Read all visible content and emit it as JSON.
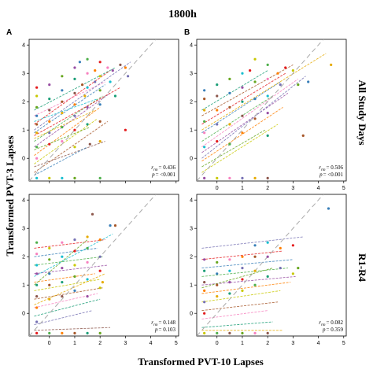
{
  "figure": {
    "title": "1800h",
    "xlabel": "Transformed PVT-10 Lapses",
    "ylabel": "Transformed PVT-3 Lapses",
    "row_labels": [
      "All Study Days",
      "R1-R4"
    ],
    "panel_letters": [
      "A",
      "B"
    ]
  },
  "colors": {
    "points": [
      "#e41a1c",
      "#377eb8",
      "#4daf4a",
      "#984ea3",
      "#ff7f00",
      "#c8c800",
      "#a65628",
      "#f781bf",
      "#1b9e77",
      "#7570b3",
      "#66a61e",
      "#e6ab02",
      "#17becf",
      "#8c564b"
    ],
    "identity_line": "#aaaaaa"
  },
  "chart_data": [
    {
      "type": "scatter",
      "panel": "A",
      "xlim": [
        -0.8,
        5.1
      ],
      "ylim": [
        -0.8,
        4.2
      ],
      "xticks": [
        0,
        1,
        2,
        3,
        4,
        5
      ],
      "yticks": [
        0,
        1,
        2,
        3,
        4
      ],
      "x_tick_labels_shown": false,
      "stat_r": "r",
      "stat_sub": "rm",
      "stat_r_value": "= 0.436",
      "stat_p": "p",
      "stat_p_value": "= <0.001",
      "identity_line": true,
      "points": [
        [
          -0.5,
          2.5
        ],
        [
          -0.5,
          2.2
        ],
        [
          -0.5,
          1.8
        ],
        [
          -0.5,
          1.5
        ],
        [
          -0.5,
          1.2
        ],
        [
          -0.5,
          0.9
        ],
        [
          -0.5,
          0.4
        ],
        [
          -0.5,
          0.0
        ],
        [
          -0.5,
          -0.7
        ],
        [
          0,
          2.6
        ],
        [
          0,
          2.1
        ],
        [
          0,
          1.7
        ],
        [
          0,
          1.3
        ],
        [
          0,
          0.9
        ],
        [
          0,
          0.5
        ],
        [
          0,
          -0.7
        ],
        [
          0.5,
          2.9
        ],
        [
          0.5,
          2.4
        ],
        [
          0.5,
          2.0
        ],
        [
          0.5,
          1.6
        ],
        [
          0.5,
          1.1
        ],
        [
          0.5,
          0.6
        ],
        [
          0.5,
          -0.7
        ],
        [
          1,
          3.2
        ],
        [
          1,
          2.8
        ],
        [
          1,
          2.3
        ],
        [
          1,
          1.9
        ],
        [
          1,
          1.5
        ],
        [
          1,
          1.0
        ],
        [
          1,
          0.4
        ],
        [
          1,
          -0.7
        ],
        [
          1.2,
          3.4
        ],
        [
          1.3,
          2.6
        ],
        [
          1.4,
          2.2
        ],
        [
          1.5,
          3.5
        ],
        [
          1.5,
          3.0
        ],
        [
          1.5,
          2.5
        ],
        [
          1.5,
          1.8
        ],
        [
          1.5,
          1.2
        ],
        [
          1.6,
          0.5
        ],
        [
          1.8,
          3.1
        ],
        [
          1.8,
          2.7
        ],
        [
          2,
          3.4
        ],
        [
          2,
          2.9
        ],
        [
          2,
          2.4
        ],
        [
          2,
          1.9
        ],
        [
          2,
          1.3
        ],
        [
          2,
          0.6
        ],
        [
          2,
          -0.7
        ],
        [
          2.3,
          3.2
        ],
        [
          2.4,
          2.7
        ],
        [
          2.5,
          3.1
        ],
        [
          2.6,
          2.2
        ],
        [
          2.8,
          3.3
        ],
        [
          3,
          3.2
        ],
        [
          3.1,
          2.9
        ],
        [
          3,
          1.0
        ]
      ],
      "fit_lines": [
        [
          -0.6,
          1.2,
          2.4,
          3.1
        ],
        [
          -0.6,
          0.9,
          2.2,
          2.6
        ],
        [
          -0.6,
          0.6,
          2.1,
          2.2
        ],
        [
          -0.6,
          0.4,
          2.4,
          2.3
        ],
        [
          -0.6,
          0.1,
          2.0,
          1.8
        ],
        [
          -0.6,
          -0.2,
          1.9,
          1.4
        ],
        [
          -0.6,
          -0.5,
          2.3,
          1.3
        ],
        [
          -0.6,
          1.5,
          2.2,
          2.7
        ],
        [
          -0.6,
          1.7,
          2.6,
          3.2
        ],
        [
          -0.6,
          1.0,
          3.2,
          3.4
        ],
        [
          -0.6,
          0.3,
          1.6,
          1.1
        ],
        [
          -0.6,
          0.7,
          1.8,
          1.7
        ],
        [
          -0.6,
          1.3,
          1.9,
          2.1
        ],
        [
          -0.6,
          -0.3,
          2.2,
          0.6
        ],
        [
          -0.6,
          0.8,
          2.8,
          2.5
        ],
        [
          -0.6,
          -0.6,
          1.5,
          0.4
        ]
      ]
    },
    {
      "type": "scatter",
      "panel": "B",
      "xlim": [
        -0.8,
        5.1
      ],
      "ylim": [
        -0.8,
        4.2
      ],
      "xticks": [
        0,
        1,
        2,
        3,
        4,
        5
      ],
      "yticks": [
        0,
        1,
        2,
        3,
        4
      ],
      "x_tick_labels_shown": true,
      "stat_r": "r",
      "stat_sub": "rm",
      "stat_r_value": "= 0.506",
      "stat_p": "p",
      "stat_p_value": "= <0.001",
      "identity_line": true,
      "points": [
        [
          -0.5,
          2.4
        ],
        [
          -0.5,
          2.1
        ],
        [
          -0.5,
          1.7
        ],
        [
          -0.5,
          1.3
        ],
        [
          -0.5,
          0.9
        ],
        [
          -0.5,
          0.4
        ],
        [
          -0.5,
          -0.7
        ],
        [
          0,
          2.6
        ],
        [
          0,
          2.2
        ],
        [
          0,
          1.7
        ],
        [
          0,
          1.2
        ],
        [
          0,
          0.6
        ],
        [
          0,
          -0.7
        ],
        [
          0.5,
          2.8
        ],
        [
          0.5,
          2.3
        ],
        [
          0.5,
          1.8
        ],
        [
          0.5,
          1.2
        ],
        [
          0.5,
          0.5
        ],
        [
          0.5,
          -0.7
        ],
        [
          1,
          3.0
        ],
        [
          1,
          2.5
        ],
        [
          1,
          2.0
        ],
        [
          1,
          1.5
        ],
        [
          1,
          0.9
        ],
        [
          1,
          -0.7
        ],
        [
          1.3,
          3.1
        ],
        [
          1.5,
          3.5
        ],
        [
          1.5,
          2.7
        ],
        [
          1.5,
          2.1
        ],
        [
          1.5,
          1.4
        ],
        [
          1.5,
          -0.7
        ],
        [
          2,
          3.3
        ],
        [
          2,
          2.8
        ],
        [
          2,
          2.2
        ],
        [
          2,
          1.6
        ],
        [
          2,
          0.8
        ],
        [
          2,
          -0.7
        ],
        [
          2.4,
          3.0
        ],
        [
          2.5,
          2.6
        ],
        [
          2.7,
          3.2
        ],
        [
          3,
          3.1
        ],
        [
          3.2,
          2.6
        ],
        [
          3.6,
          2.7
        ],
        [
          3.4,
          0.8
        ],
        [
          4.5,
          3.3
        ]
      ],
      "fit_lines": [
        [
          -0.6,
          1.2,
          2.7,
          3.0
        ],
        [
          -0.6,
          0.9,
          2.5,
          2.7
        ],
        [
          -0.6,
          0.6,
          2.2,
          2.2
        ],
        [
          -0.6,
          0.2,
          2.8,
          2.3
        ],
        [
          -0.6,
          -0.1,
          2.6,
          1.8
        ],
        [
          -0.6,
          -0.5,
          2.4,
          1.2
        ],
        [
          -0.6,
          1.5,
          3.0,
          3.3
        ],
        [
          -0.6,
          0.4,
          3.2,
          2.8
        ],
        [
          -0.6,
          1.7,
          2.0,
          3.1
        ],
        [
          -0.6,
          0.0,
          3.5,
          2.9
        ],
        [
          -0.6,
          -0.3,
          1.9,
          1.0
        ],
        [
          -0.6,
          1.0,
          4.3,
          3.7
        ]
      ]
    },
    {
      "type": "scatter",
      "panel": "C",
      "xlim": [
        -0.8,
        5.1
      ],
      "ylim": [
        -0.8,
        4.2
      ],
      "xticks": [
        0,
        1,
        2,
        3,
        4,
        5
      ],
      "yticks": [
        0,
        1,
        2,
        3,
        4
      ],
      "x_tick_labels_shown": true,
      "stat_r": "r",
      "stat_sub": "rm",
      "stat_r_value": "= 0.148",
      "stat_p": "p",
      "stat_p_value": "= 0.103",
      "identity_line": true,
      "points": [
        [
          -0.5,
          2.5
        ],
        [
          -0.5,
          2.1
        ],
        [
          -0.5,
          1.7
        ],
        [
          -0.5,
          1.4
        ],
        [
          -0.5,
          1.0
        ],
        [
          -0.5,
          0.6
        ],
        [
          -0.5,
          0.2
        ],
        [
          -0.5,
          -0.3
        ],
        [
          -0.5,
          -0.7
        ],
        [
          0,
          2.3
        ],
        [
          0,
          1.9
        ],
        [
          0,
          1.4
        ],
        [
          0,
          1.0
        ],
        [
          0,
          0.5
        ],
        [
          0,
          -0.7
        ],
        [
          0.5,
          2.5
        ],
        [
          0.5,
          2.0
        ],
        [
          0.5,
          1.6
        ],
        [
          0.5,
          1.1
        ],
        [
          0.5,
          0.6
        ],
        [
          0.5,
          -0.7
        ],
        [
          1,
          2.6
        ],
        [
          1,
          2.2
        ],
        [
          1,
          1.7
        ],
        [
          1,
          1.3
        ],
        [
          1,
          0.8
        ],
        [
          1,
          -0.7
        ],
        [
          1.5,
          2.7
        ],
        [
          1.5,
          2.3
        ],
        [
          1.5,
          1.8
        ],
        [
          1.5,
          1.2
        ],
        [
          1.5,
          0.6
        ],
        [
          1.5,
          -0.7
        ],
        [
          1.7,
          3.5
        ],
        [
          2,
          2.6
        ],
        [
          2,
          2.0
        ],
        [
          2,
          1.5
        ],
        [
          2,
          0.9
        ],
        [
          2,
          -0.7
        ],
        [
          2.4,
          3.1
        ],
        [
          2.6,
          3.1
        ],
        [
          2.1,
          1.1
        ]
      ],
      "fit_lines": [
        [
          -0.6,
          2.3,
          2.2,
          2.6
        ],
        [
          -0.6,
          2.0,
          1.9,
          2.3
        ],
        [
          -0.6,
          1.7,
          2.1,
          2.0
        ],
        [
          -0.6,
          1.4,
          2.3,
          1.7
        ],
        [
          -0.6,
          1.1,
          1.8,
          1.4
        ],
        [
          -0.6,
          0.8,
          2.0,
          1.2
        ],
        [
          -0.6,
          0.5,
          2.1,
          0.9
        ],
        [
          -0.6,
          0.2,
          1.9,
          0.7
        ],
        [
          -0.6,
          -0.1,
          2.0,
          0.5
        ],
        [
          -0.6,
          -0.4,
          1.7,
          0.1
        ],
        [
          -0.6,
          1.0,
          1.5,
          2.6
        ],
        [
          -0.6,
          0.3,
          2.2,
          1.4
        ],
        [
          -0.6,
          1.3,
          2.5,
          2.8
        ],
        [
          -0.6,
          -0.6,
          2.4,
          -0.5
        ]
      ]
    },
    {
      "type": "scatter",
      "panel": "D",
      "xlim": [
        -0.8,
        5.1
      ],
      "ylim": [
        -0.8,
        4.2
      ],
      "xticks": [
        0,
        1,
        2,
        3,
        4,
        5
      ],
      "yticks": [
        0,
        1,
        2,
        3,
        4
      ],
      "x_tick_labels_shown": true,
      "stat_r": "r",
      "stat_sub": "rm",
      "stat_r_value": "= 0.082",
      "stat_p": "p",
      "stat_p_value": "= 0.359",
      "identity_line": true,
      "points": [
        [
          -0.5,
          1.9
        ],
        [
          -0.5,
          1.5
        ],
        [
          -0.5,
          1.1
        ],
        [
          -0.5,
          0.8
        ],
        [
          -0.5,
          0.4
        ],
        [
          -0.5,
          0.0
        ],
        [
          -0.5,
          -0.7
        ],
        [
          0,
          1.8
        ],
        [
          0,
          1.4
        ],
        [
          0,
          1.0
        ],
        [
          0,
          0.6
        ],
        [
          0,
          -0.7
        ],
        [
          0.5,
          1.9
        ],
        [
          0.5,
          1.5
        ],
        [
          0.5,
          1.1
        ],
        [
          0.5,
          0.7
        ],
        [
          0.5,
          -0.7
        ],
        [
          1,
          2.0
        ],
        [
          1,
          1.6
        ],
        [
          1,
          1.2
        ],
        [
          1,
          0.8
        ],
        [
          1,
          -0.7
        ],
        [
          1.5,
          2.4
        ],
        [
          1.5,
          2.0
        ],
        [
          1.5,
          1.5
        ],
        [
          1.5,
          1.0
        ],
        [
          1.5,
          -0.7
        ],
        [
          2,
          2.5
        ],
        [
          2,
          2.0
        ],
        [
          2,
          1.3
        ],
        [
          2,
          -0.7
        ],
        [
          2.5,
          2.3
        ],
        [
          2.5,
          1.6
        ],
        [
          3,
          2.4
        ],
        [
          3,
          1.4
        ],
        [
          3.2,
          1.6
        ],
        [
          4.4,
          3.7
        ]
      ],
      "fit_lines": [
        [
          -0.6,
          1.9,
          2.6,
          2.2
        ],
        [
          -0.6,
          1.6,
          3.0,
          1.9
        ],
        [
          -0.6,
          1.3,
          2.8,
          1.6
        ],
        [
          -0.6,
          1.0,
          3.1,
          1.3
        ],
        [
          -0.6,
          0.7,
          2.9,
          1.1
        ],
        [
          -0.6,
          0.4,
          2.5,
          0.8
        ],
        [
          -0.6,
          0.1,
          2.4,
          0.4
        ],
        [
          -0.6,
          -0.2,
          2.0,
          0.1
        ],
        [
          -0.6,
          -0.5,
          2.2,
          -0.3
        ],
        [
          -0.6,
          2.3,
          3.4,
          2.7
        ],
        [
          -0.6,
          0.9,
          2.2,
          1.6
        ],
        [
          -0.6,
          -0.6,
          2.6,
          -0.6
        ]
      ]
    }
  ]
}
